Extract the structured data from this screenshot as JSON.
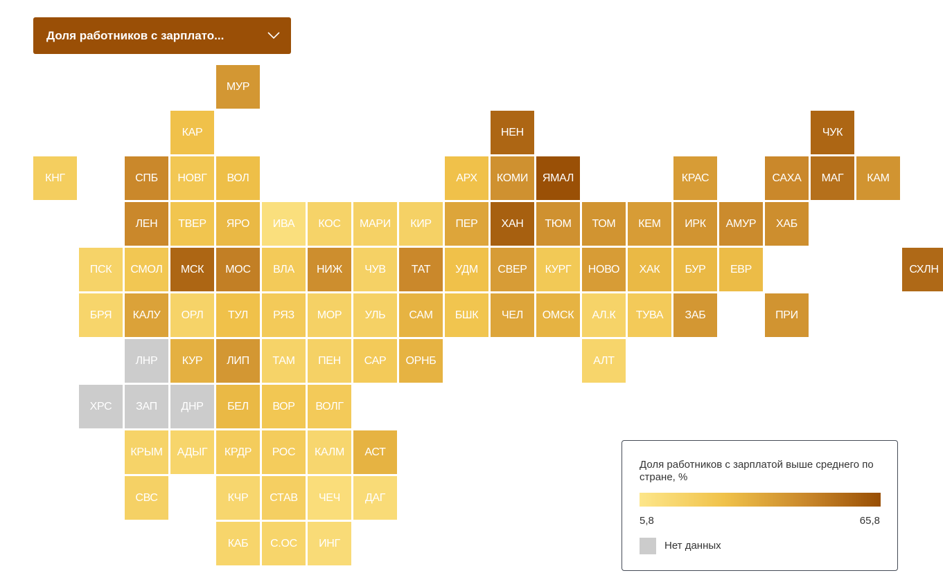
{
  "dropdown": {
    "label": "Доля работников с зарплато..."
  },
  "legend": {
    "title": "Доля работников с зарплатой выше среднего по стране, %",
    "min": "5,8",
    "max": "65,8",
    "nodata_label": "Нет данных",
    "min_value": 5.8,
    "max_value": 65.8,
    "colors": [
      "#fde68a",
      "#f0c24a",
      "#c8862a",
      "#984e04"
    ],
    "nodata_color": "#cccccc"
  },
  "regions": [
    {
      "abbr": "МУР",
      "row": 0,
      "col": 4,
      "value": 42
    },
    {
      "abbr": "КАР",
      "row": 1,
      "col": 3,
      "value": 27
    },
    {
      "abbr": "НЕН",
      "row": 1,
      "col": 10,
      "value": 58
    },
    {
      "abbr": "ЧУК",
      "row": 1,
      "col": 17,
      "value": 58
    },
    {
      "abbr": "КНГ",
      "row": 2,
      "col": 0,
      "value": 20
    },
    {
      "abbr": "СПБ",
      "row": 2,
      "col": 2,
      "value": 47
    },
    {
      "abbr": "НОВГ",
      "row": 2,
      "col": 3,
      "value": 24
    },
    {
      "abbr": "ВОЛ",
      "row": 2,
      "col": 4,
      "value": 28
    },
    {
      "abbr": "АРХ",
      "row": 2,
      "col": 9,
      "value": 27
    },
    {
      "abbr": "КОМИ",
      "row": 2,
      "col": 10,
      "value": 44
    },
    {
      "abbr": "ЯМАЛ",
      "row": 2,
      "col": 11,
      "value": 65
    },
    {
      "abbr": "КРАС",
      "row": 2,
      "col": 14,
      "value": 40
    },
    {
      "abbr": "САХА",
      "row": 2,
      "col": 16,
      "value": 47
    },
    {
      "abbr": "МАГ",
      "row": 2,
      "col": 17,
      "value": 55
    },
    {
      "abbr": "КАМ",
      "row": 2,
      "col": 18,
      "value": 43
    },
    {
      "abbr": "ЛЕН",
      "row": 3,
      "col": 2,
      "value": 47
    },
    {
      "abbr": "ТВЕР",
      "row": 3,
      "col": 3,
      "value": 25
    },
    {
      "abbr": "ЯРО",
      "row": 3,
      "col": 4,
      "value": 30
    },
    {
      "abbr": "ИВА",
      "row": 3,
      "col": 5,
      "value": 10
    },
    {
      "abbr": "КОС",
      "row": 3,
      "col": 6,
      "value": 17
    },
    {
      "abbr": "МАРИ",
      "row": 3,
      "col": 7,
      "value": 18
    },
    {
      "abbr": "КИР",
      "row": 3,
      "col": 8,
      "value": 18
    },
    {
      "abbr": "ПЕР",
      "row": 3,
      "col": 9,
      "value": 37
    },
    {
      "abbr": "ХАН",
      "row": 3,
      "col": 10,
      "value": 60
    },
    {
      "abbr": "ТЮМ",
      "row": 3,
      "col": 11,
      "value": 44
    },
    {
      "abbr": "ТОМ",
      "row": 3,
      "col": 12,
      "value": 43
    },
    {
      "abbr": "КЕМ",
      "row": 3,
      "col": 13,
      "value": 40
    },
    {
      "abbr": "ИРК",
      "row": 3,
      "col": 14,
      "value": 43
    },
    {
      "abbr": "АМУР",
      "row": 3,
      "col": 15,
      "value": 46
    },
    {
      "abbr": "ХАБ",
      "row": 3,
      "col": 16,
      "value": 45
    },
    {
      "abbr": "ПСК",
      "row": 4,
      "col": 1,
      "value": 17
    },
    {
      "abbr": "СМОЛ",
      "row": 4,
      "col": 2,
      "value": 24
    },
    {
      "abbr": "МСК",
      "row": 4,
      "col": 3,
      "value": 58
    },
    {
      "abbr": "МОС",
      "row": 4,
      "col": 4,
      "value": 50
    },
    {
      "abbr": "ВЛА",
      "row": 4,
      "col": 5,
      "value": 22
    },
    {
      "abbr": "НИЖ",
      "row": 4,
      "col": 6,
      "value": 45
    },
    {
      "abbr": "ЧУВ",
      "row": 4,
      "col": 7,
      "value": 18
    },
    {
      "abbr": "ТАТ",
      "row": 4,
      "col": 8,
      "value": 47
    },
    {
      "abbr": "УДМ",
      "row": 4,
      "col": 9,
      "value": 27
    },
    {
      "abbr": "СВЕР",
      "row": 4,
      "col": 10,
      "value": 40
    },
    {
      "abbr": "КУРГ",
      "row": 4,
      "col": 11,
      "value": 23
    },
    {
      "abbr": "НОВО",
      "row": 4,
      "col": 12,
      "value": 40
    },
    {
      "abbr": "ХАК",
      "row": 4,
      "col": 13,
      "value": 30
    },
    {
      "abbr": "БУР",
      "row": 4,
      "col": 14,
      "value": 30
    },
    {
      "abbr": "ЕВР",
      "row": 4,
      "col": 15,
      "value": 29
    },
    {
      "abbr": "СХЛН",
      "row": 4,
      "col": 19,
      "value": 57
    },
    {
      "abbr": "БРЯ",
      "row": 5,
      "col": 1,
      "value": 16
    },
    {
      "abbr": "КАЛУ",
      "row": 5,
      "col": 2,
      "value": 38
    },
    {
      "abbr": "ОРЛ",
      "row": 5,
      "col": 3,
      "value": 17
    },
    {
      "abbr": "ТУЛ",
      "row": 5,
      "col": 4,
      "value": 27
    },
    {
      "abbr": "РЯЗ",
      "row": 5,
      "col": 5,
      "value": 22
    },
    {
      "abbr": "МОР",
      "row": 5,
      "col": 6,
      "value": 18
    },
    {
      "abbr": "УЛЬ",
      "row": 5,
      "col": 7,
      "value": 18
    },
    {
      "abbr": "САМ",
      "row": 5,
      "col": 8,
      "value": 32
    },
    {
      "abbr": "БШК",
      "row": 5,
      "col": 9,
      "value": 25
    },
    {
      "abbr": "ЧЕЛ",
      "row": 5,
      "col": 10,
      "value": 37
    },
    {
      "abbr": "ОМСК",
      "row": 5,
      "col": 11,
      "value": 32
    },
    {
      "abbr": "АЛ.К",
      "row": 5,
      "col": 12,
      "value": 17
    },
    {
      "abbr": "ТУВА",
      "row": 5,
      "col": 13,
      "value": 22
    },
    {
      "abbr": "ЗАБ",
      "row": 5,
      "col": 14,
      "value": 42
    },
    {
      "abbr": "ПРИ",
      "row": 5,
      "col": 16,
      "value": 43
    },
    {
      "abbr": "ЛНР",
      "row": 6,
      "col": 2,
      "value": null
    },
    {
      "abbr": "КУР",
      "row": 6,
      "col": 3,
      "value": 33
    },
    {
      "abbr": "ЛИП",
      "row": 6,
      "col": 4,
      "value": 42
    },
    {
      "abbr": "ТАМ",
      "row": 6,
      "col": 5,
      "value": 17
    },
    {
      "abbr": "ПЕН",
      "row": 6,
      "col": 6,
      "value": 18
    },
    {
      "abbr": "САР",
      "row": 6,
      "col": 7,
      "value": 22
    },
    {
      "abbr": "ОРНБ",
      "row": 6,
      "col": 8,
      "value": 32
    },
    {
      "abbr": "АЛТ",
      "row": 6,
      "col": 12,
      "value": 16
    },
    {
      "abbr": "ХРС",
      "row": 7,
      "col": 1,
      "value": null
    },
    {
      "abbr": "ЗАП",
      "row": 7,
      "col": 2,
      "value": null
    },
    {
      "abbr": "ДНР",
      "row": 7,
      "col": 3,
      "value": null
    },
    {
      "abbr": "БЕЛ",
      "row": 7,
      "col": 4,
      "value": 30
    },
    {
      "abbr": "ВОР",
      "row": 7,
      "col": 5,
      "value": 24
    },
    {
      "abbr": "ВОЛГ",
      "row": 7,
      "col": 6,
      "value": 22
    },
    {
      "abbr": "КРЫМ",
      "row": 8,
      "col": 2,
      "value": 17
    },
    {
      "abbr": "АДЫГ",
      "row": 8,
      "col": 3,
      "value": 16
    },
    {
      "abbr": "КРДР",
      "row": 8,
      "col": 4,
      "value": 21
    },
    {
      "abbr": "РОС",
      "row": 8,
      "col": 5,
      "value": 21
    },
    {
      "abbr": "КАЛМ",
      "row": 8,
      "col": 6,
      "value": 15
    },
    {
      "abbr": "АСТ",
      "row": 8,
      "col": 7,
      "value": 32
    },
    {
      "abbr": "СВС",
      "row": 9,
      "col": 2,
      "value": 18
    },
    {
      "abbr": "КЧР",
      "row": 9,
      "col": 4,
      "value": 15
    },
    {
      "abbr": "СТАВ",
      "row": 9,
      "col": 5,
      "value": 19
    },
    {
      "abbr": "ЧЕЧ",
      "row": 9,
      "col": 6,
      "value": 11
    },
    {
      "abbr": "ДАГ",
      "row": 9,
      "col": 7,
      "value": 12
    },
    {
      "abbr": "КАБ",
      "row": 10,
      "col": 4,
      "value": 16
    },
    {
      "abbr": "С.ОС",
      "row": 10,
      "col": 5,
      "value": 16
    },
    {
      "abbr": "ИНГ",
      "row": 10,
      "col": 6,
      "value": 12
    }
  ]
}
